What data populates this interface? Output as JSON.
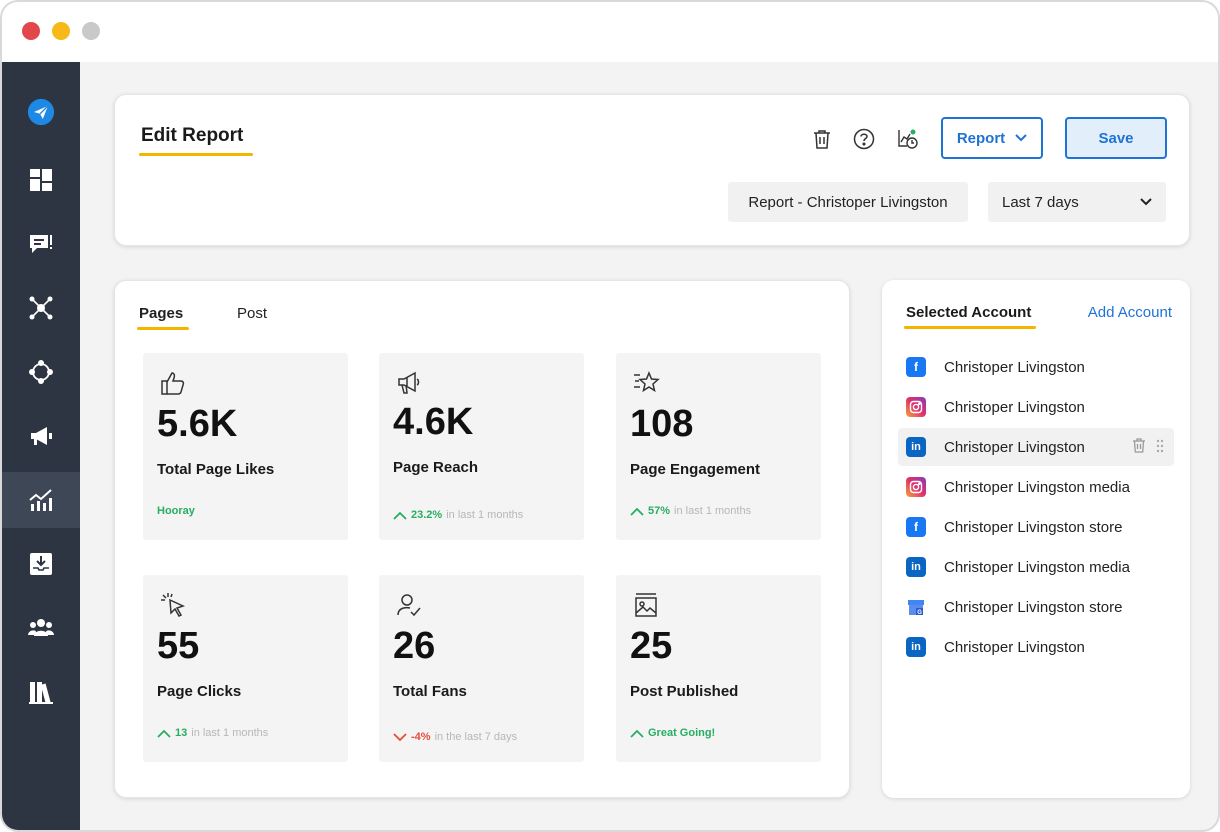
{
  "window": {
    "controls": [
      "close",
      "minimize",
      "zoom"
    ]
  },
  "sidebar": {
    "items": [
      {
        "icon": "paper-plane-logo-icon",
        "active": false
      },
      {
        "icon": "dashboard-icon",
        "active": false
      },
      {
        "icon": "chat-icon",
        "active": false
      },
      {
        "icon": "network-icon",
        "active": false
      },
      {
        "icon": "share-nodes-icon",
        "active": false
      },
      {
        "icon": "megaphone-icon",
        "active": false
      },
      {
        "icon": "analytics-icon",
        "active": true
      },
      {
        "icon": "inbox-download-icon",
        "active": false
      },
      {
        "icon": "team-icon",
        "active": false
      },
      {
        "icon": "library-icon",
        "active": false
      }
    ]
  },
  "header": {
    "title": "Edit Report",
    "report_button": "Report",
    "save_button": "Save",
    "report_name": "Report - Christoper Livingston",
    "date_range": "Last 7 days"
  },
  "tabs": [
    {
      "label": "Pages",
      "active": true
    },
    {
      "label": "Post",
      "active": false
    }
  ],
  "stats": [
    {
      "icon": "thumbs-up-icon",
      "value": "5.6K",
      "label": "Total Page Likes",
      "foot_highlight": "Hooray",
      "foot_text": "",
      "trend": "none"
    },
    {
      "icon": "megaphone-icon",
      "value": "4.6K",
      "label": "Page Reach",
      "foot_highlight": "23.2%",
      "foot_text": "in last 1 months",
      "trend": "up"
    },
    {
      "icon": "star-icon",
      "value": "108",
      "label": "Page Engagement",
      "foot_highlight": "57%",
      "foot_text": "in last 1 months",
      "trend": "up"
    },
    {
      "icon": "cursor-click-icon",
      "value": "55",
      "label": "Page Clicks",
      "foot_highlight": "13",
      "foot_text": "in last 1 months",
      "trend": "up"
    },
    {
      "icon": "user-check-icon",
      "value": "26",
      "label": "Total Fans",
      "foot_highlight": "-4%",
      "foot_text": "in the last 7 days",
      "trend": "down"
    },
    {
      "icon": "image-icon",
      "value": "25",
      "label": "Post Published",
      "foot_highlight": "Great Going!",
      "foot_text": "",
      "trend": "up"
    }
  ],
  "accounts": {
    "title": "Selected Account",
    "add_label": "Add Account",
    "items": [
      {
        "network": "facebook",
        "name": "Christoper Livingston"
      },
      {
        "network": "instagram",
        "name": "Christoper Livingston"
      },
      {
        "network": "linkedin",
        "name": "Christoper Livingston",
        "hover": true
      },
      {
        "network": "instagram",
        "name": "Christoper Livingston media"
      },
      {
        "network": "facebook",
        "name": "Christoper Livingston store"
      },
      {
        "network": "linkedin",
        "name": "Christoper Livingston media"
      },
      {
        "network": "google-business",
        "name": "Christoper Livingston store"
      },
      {
        "network": "linkedin",
        "name": "Christoper Livingston"
      }
    ]
  },
  "colors": {
    "accent": "#1e73d6",
    "underline": "#f5b400",
    "sidebar": "#2d3542",
    "positive": "#27ae60",
    "negative": "#e74c3c",
    "facebook": "#1877f2",
    "linkedin": "#0a66c2",
    "instagram": "#e1306c"
  }
}
